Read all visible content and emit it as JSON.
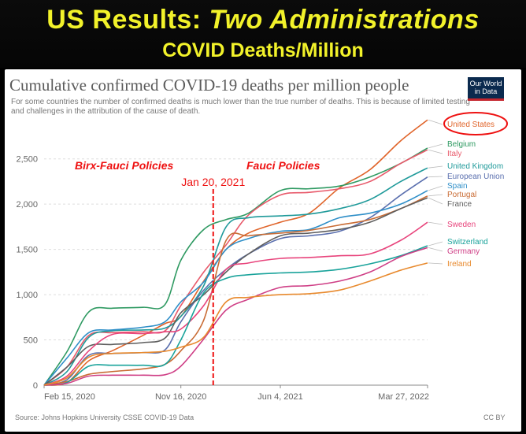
{
  "banner": {
    "title_prefix": "US Results: ",
    "title_italic": "Two Administrations",
    "subtitle": "COVID Deaths/Million"
  },
  "chart_header": {
    "title": "Cumulative confirmed COVID-19 deaths per million people",
    "subtitle": "For some countries the number of confirmed deaths is much lower than the true number of deaths. This is because of limited testing and challenges in the attribution of the cause of death.",
    "logo_line1": "Our World",
    "logo_line2": "in Data"
  },
  "footer": {
    "source": "Source: Johns Hopkins University CSSE COVID-19 Data",
    "license": "CC BY"
  },
  "chart_data": {
    "type": "line",
    "title": "Cumulative confirmed COVID-19 deaths per million people",
    "xlabel": "",
    "ylabel": "",
    "ylim": [
      0,
      2950
    ],
    "grid": true,
    "x": [
      "2020-02-15",
      "2020-04-01",
      "2020-05-15",
      "2020-07-01",
      "2020-09-01",
      "2020-10-15",
      "2020-11-16",
      "2021-01-01",
      "2021-02-15",
      "2021-04-01",
      "2021-06-04",
      "2021-08-01",
      "2021-10-01",
      "2021-12-01",
      "2022-02-01",
      "2022-03-27"
    ],
    "x_ticks": [
      {
        "date": "2020-02-15",
        "label": "Feb 15, 2020"
      },
      {
        "date": "2020-11-16",
        "label": "Nov 16, 2020"
      },
      {
        "date": "2021-06-04",
        "label": "Jun 4, 2021"
      },
      {
        "date": "2022-03-27",
        "label": "Mar 27, 2022"
      }
    ],
    "y_ticks": [
      {
        "value": 0,
        "label": "0"
      },
      {
        "value": 500,
        "label": "500"
      },
      {
        "value": 1000,
        "label": "1,000"
      },
      {
        "value": 1500,
        "label": "1,500"
      },
      {
        "value": 2000,
        "label": "2,000"
      },
      {
        "value": 2500,
        "label": "2,500"
      }
    ],
    "series": [
      {
        "name": "United States",
        "color": "#e0642a",
        "values": [
          0,
          30,
          270,
          380,
          550,
          680,
          760,
          1150,
          1500,
          1680,
          1800,
          1900,
          2180,
          2380,
          2700,
          2930
        ]
      },
      {
        "name": "Belgium",
        "color": "#2f9a62",
        "values": [
          0,
          370,
          810,
          850,
          860,
          890,
          1380,
          1720,
          1830,
          1900,
          2150,
          2170,
          2200,
          2300,
          2450,
          2620
        ]
      },
      {
        "name": "Italy",
        "color": "#e85a6b",
        "values": [
          0,
          200,
          550,
          580,
          590,
          600,
          880,
          1250,
          1550,
          1880,
          2100,
          2130,
          2170,
          2250,
          2450,
          2600
        ]
      },
      {
        "name": "United Kingdom",
        "color": "#1f9a9a",
        "values": [
          0,
          150,
          530,
          600,
          610,
          630,
          760,
          1100,
          1750,
          1850,
          1870,
          1890,
          1950,
          2050,
          2250,
          2400
        ]
      },
      {
        "name": "European Union",
        "color": "#5a6fae",
        "values": [
          0,
          60,
          330,
          350,
          360,
          390,
          700,
          1050,
          1280,
          1450,
          1620,
          1650,
          1700,
          1850,
          2100,
          2300
        ]
      },
      {
        "name": "Spain",
        "color": "#2f8fc8",
        "values": [
          0,
          300,
          580,
          610,
          640,
          700,
          920,
          1140,
          1500,
          1620,
          1700,
          1720,
          1850,
          1900,
          2000,
          2150
        ]
      },
      {
        "name": "Portugal",
        "color": "#c96c35",
        "values": [
          0,
          40,
          120,
          150,
          180,
          230,
          380,
          720,
          1600,
          1650,
          1680,
          1710,
          1770,
          1830,
          1950,
          2090
        ]
      },
      {
        "name": "France",
        "color": "#5e5e5e",
        "values": [
          0,
          200,
          430,
          450,
          470,
          520,
          800,
          1000,
          1250,
          1450,
          1650,
          1680,
          1720,
          1800,
          1950,
          2070
        ]
      },
      {
        "name": "Sweden",
        "color": "#e8447c",
        "values": [
          0,
          100,
          380,
          560,
          570,
          590,
          620,
          880,
          1280,
          1350,
          1400,
          1410,
          1430,
          1450,
          1600,
          1800
        ]
      },
      {
        "name": "Switzerland",
        "color": "#1aa39b",
        "values": [
          0,
          30,
          210,
          220,
          220,
          230,
          500,
          1020,
          1180,
          1220,
          1240,
          1250,
          1280,
          1340,
          1430,
          1540
        ]
      },
      {
        "name": "Germany",
        "color": "#cf3f86",
        "values": [
          0,
          20,
          100,
          110,
          110,
          115,
          210,
          510,
          830,
          950,
          1080,
          1100,
          1150,
          1250,
          1420,
          1520
        ]
      },
      {
        "name": "Ireland",
        "color": "#e88a2e",
        "values": [
          0,
          80,
          310,
          350,
          360,
          375,
          420,
          530,
          920,
          970,
          1000,
          1010,
          1050,
          1150,
          1270,
          1350
        ]
      }
    ],
    "annotations": {
      "period_left": "Birx-Fauci Policies",
      "period_right": "Fauci Policies",
      "divider_label": "Jan 20, 2021",
      "divider_date": "2021-01-20",
      "highlighted_series": "United States"
    }
  }
}
